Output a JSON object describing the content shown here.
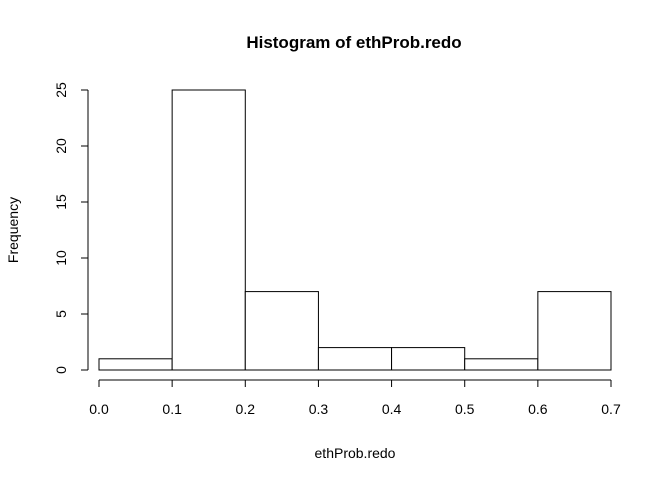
{
  "chart_data": {
    "type": "bar",
    "title": "Histogram of ethProb.redo",
    "xlabel": "ethProb.redo",
    "ylabel": "Frequency",
    "bins": [
      {
        "start": 0.0,
        "end": 0.1,
        "count": 1
      },
      {
        "start": 0.1,
        "end": 0.2,
        "count": 25
      },
      {
        "start": 0.2,
        "end": 0.3,
        "count": 7
      },
      {
        "start": 0.3,
        "end": 0.4,
        "count": 2
      },
      {
        "start": 0.4,
        "end": 0.5,
        "count": 2
      },
      {
        "start": 0.5,
        "end": 0.6,
        "count": 1
      },
      {
        "start": 0.6,
        "end": 0.7,
        "count": 7
      }
    ],
    "xlim": [
      0.0,
      0.7
    ],
    "ylim": [
      0,
      25
    ],
    "x_ticks": [
      0.0,
      0.1,
      0.2,
      0.3,
      0.4,
      0.5,
      0.6,
      0.7
    ],
    "x_tick_labels": [
      "0.0",
      "0.1",
      "0.2",
      "0.3",
      "0.4",
      "0.5",
      "0.6",
      "0.7"
    ],
    "y_ticks": [
      0,
      5,
      10,
      15,
      20,
      25
    ],
    "y_tick_labels": [
      "0",
      "5",
      "10",
      "15",
      "20",
      "25"
    ],
    "grid": false,
    "bar_fill": "#ffffff",
    "bar_stroke": "#000000"
  }
}
